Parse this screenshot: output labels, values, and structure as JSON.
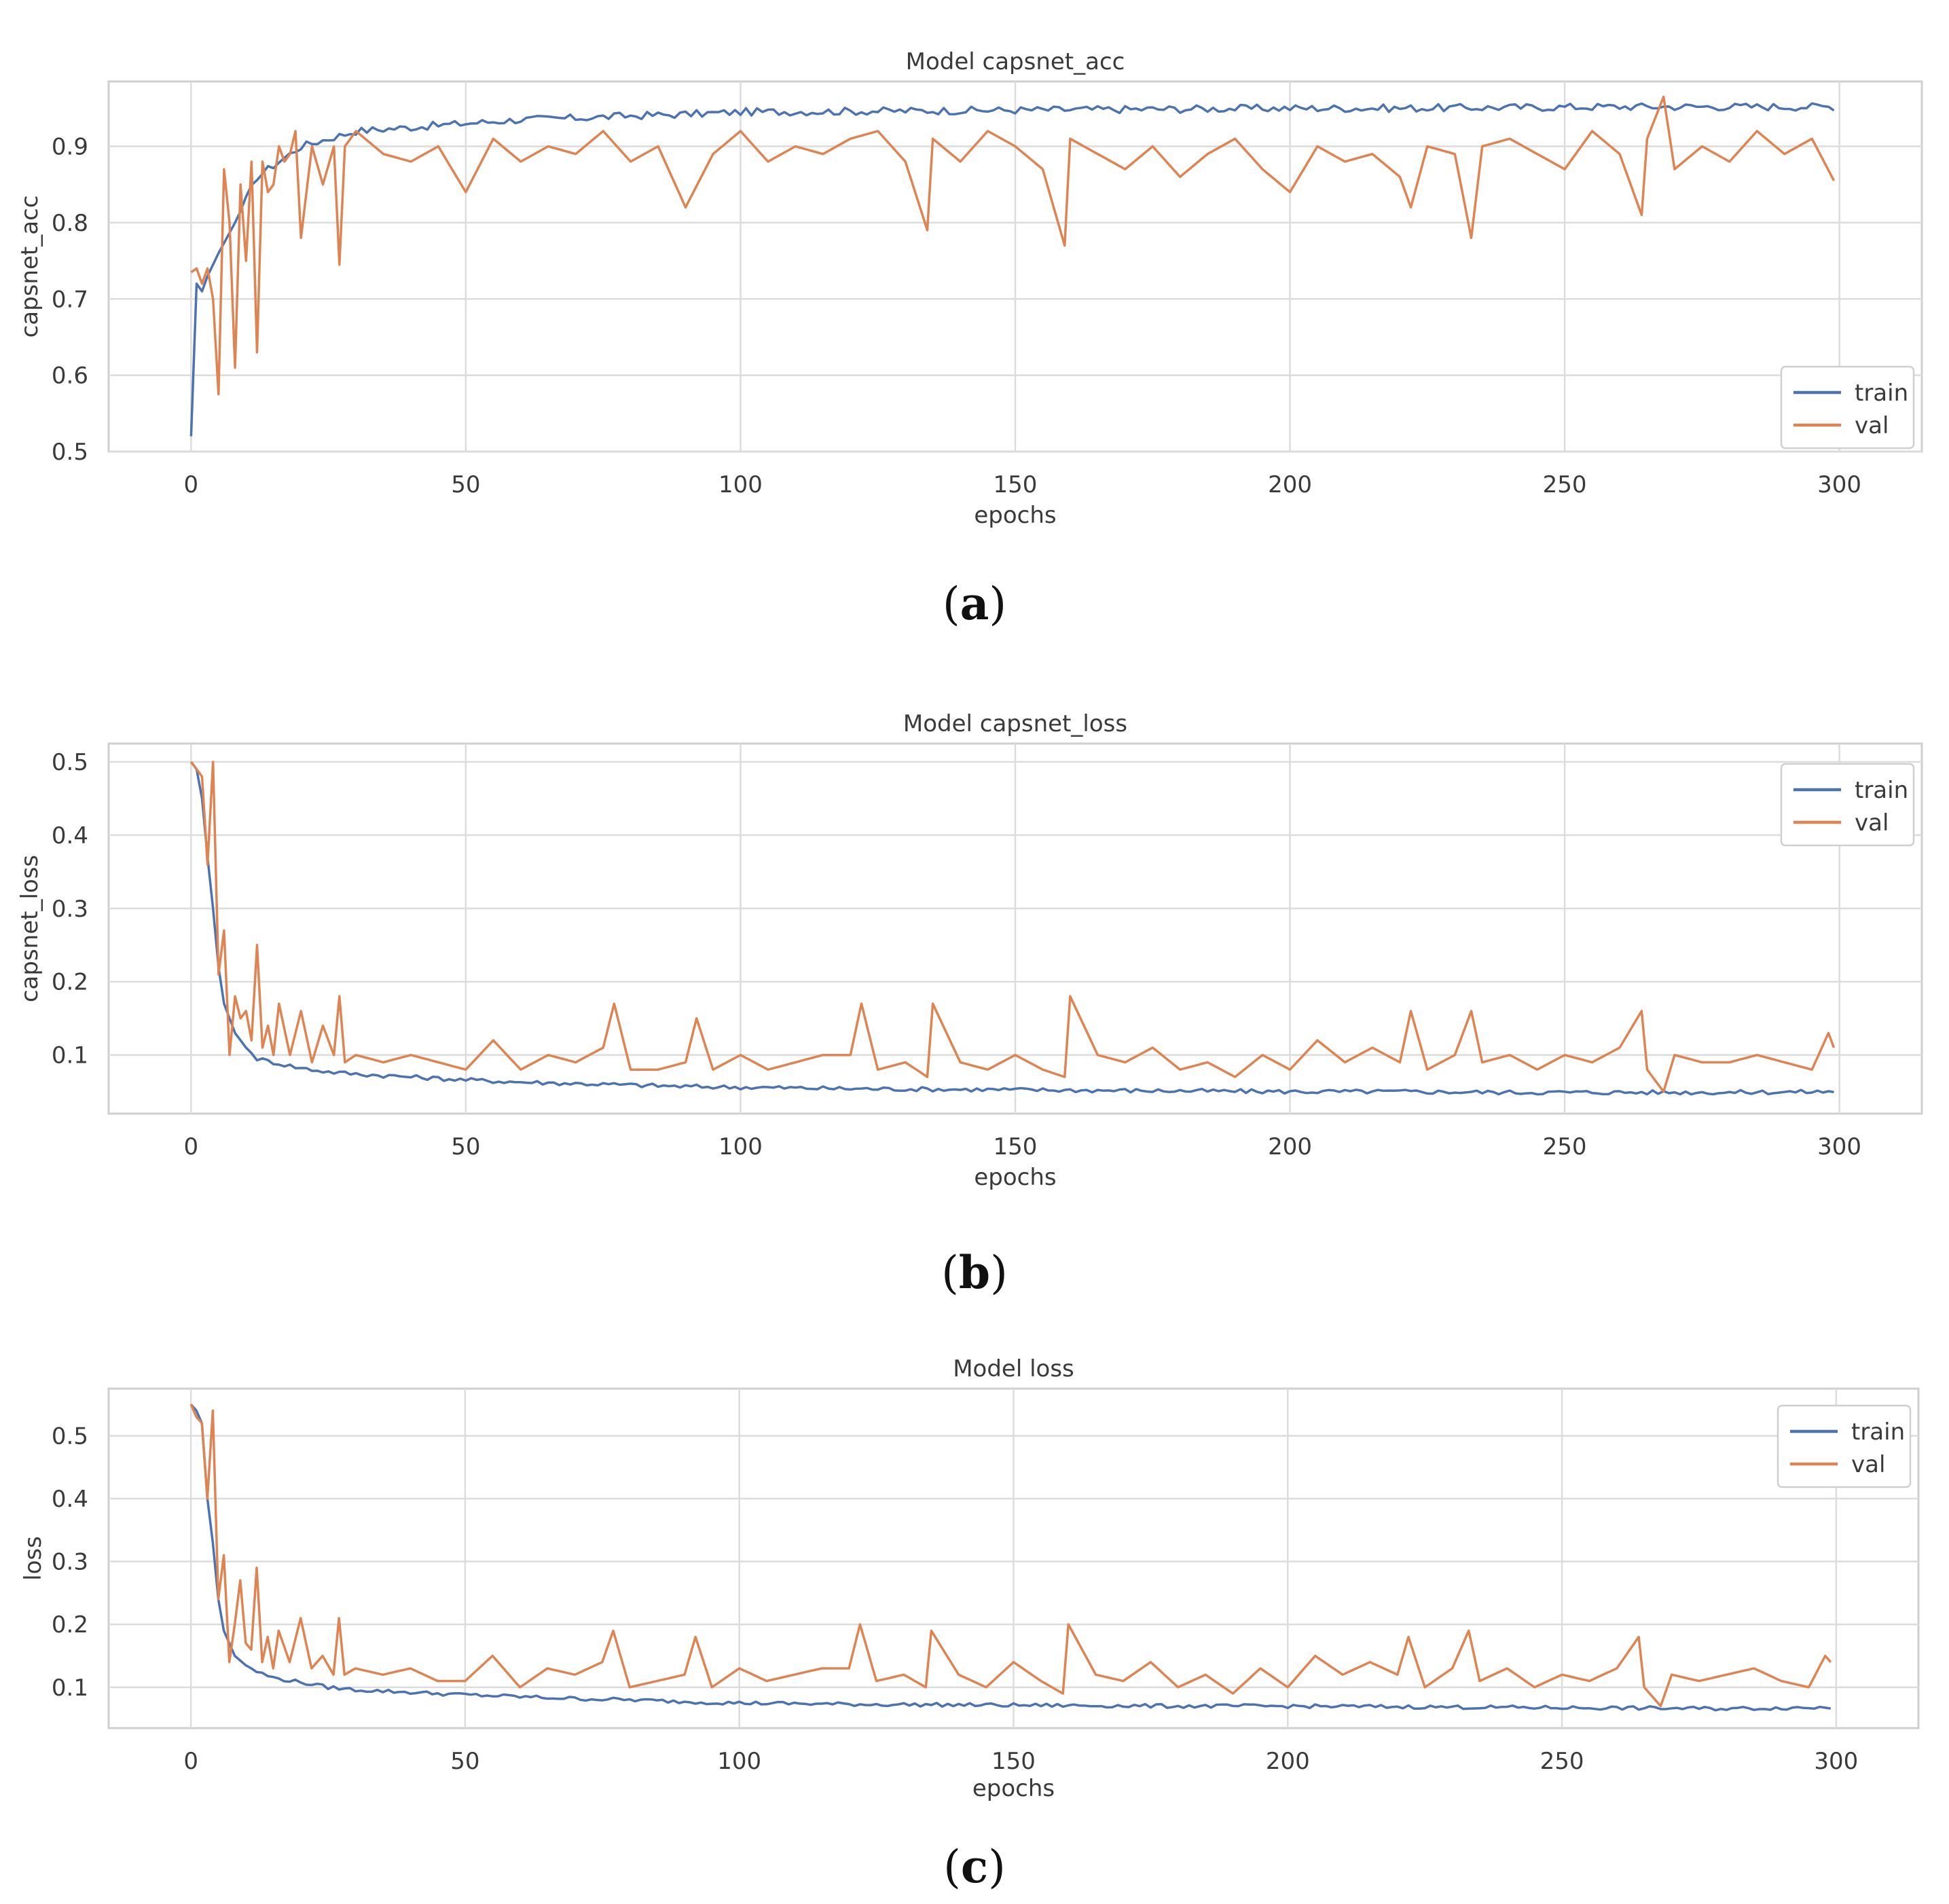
{
  "chart_data": [
    {
      "type": "line",
      "title": "Model capsnet_acc",
      "xlabel": "epochs",
      "ylabel": "capsnet_acc",
      "caption": "a",
      "xlim": [
        -15,
        315
      ],
      "ylim": [
        0.5,
        0.985
      ],
      "xticks": [
        0,
        50,
        100,
        150,
        200,
        250,
        300
      ],
      "yticks": [
        0.5,
        0.6,
        0.7,
        0.8,
        0.9
      ],
      "tick_decimals": 1,
      "legend_position": "lower-right",
      "grid": true,
      "series": [
        {
          "name": "train",
          "color": "#4c72b0",
          "x": [
            0,
            1,
            2,
            3,
            5,
            8,
            12,
            16,
            20,
            25,
            30,
            40,
            50,
            60,
            70,
            80,
            90,
            100,
            120,
            140,
            160,
            180,
            200,
            220,
            240,
            260,
            280,
            299
          ],
          "y": [
            0.52,
            0.72,
            0.71,
            0.73,
            0.76,
            0.8,
            0.86,
            0.88,
            0.9,
            0.91,
            0.92,
            0.925,
            0.93,
            0.935,
            0.937,
            0.94,
            0.942,
            0.945,
            0.946,
            0.947,
            0.948,
            0.949,
            0.95,
            0.95,
            0.951,
            0.952,
            0.952,
            0.952
          ],
          "noise_amplitude": 0.005,
          "noise_from_index": 10
        },
        {
          "name": "val",
          "color": "#dd8452",
          "x": [
            0,
            1,
            2,
            3,
            4,
            5,
            6,
            7,
            8,
            9,
            10,
            11,
            12,
            13,
            14,
            15,
            16,
            17,
            18,
            19,
            20,
            22,
            24,
            26,
            27,
            28,
            30,
            35,
            40,
            45,
            50,
            55,
            60,
            65,
            70,
            75,
            80,
            85,
            90,
            95,
            100,
            105,
            110,
            115,
            120,
            125,
            130,
            134,
            135,
            140,
            145,
            150,
            155,
            159,
            160,
            165,
            170,
            175,
            180,
            185,
            190,
            195,
            200,
            205,
            210,
            215,
            220,
            222,
            225,
            230,
            233,
            235,
            240,
            245,
            250,
            255,
            260,
            264,
            265,
            268,
            270,
            275,
            280,
            285,
            290,
            295,
            299
          ],
          "y": [
            0.735,
            0.74,
            0.72,
            0.74,
            0.7,
            0.575,
            0.87,
            0.8,
            0.61,
            0.85,
            0.75,
            0.88,
            0.63,
            0.88,
            0.84,
            0.85,
            0.9,
            0.88,
            0.89,
            0.92,
            0.78,
            0.9,
            0.85,
            0.9,
            0.745,
            0.9,
            0.92,
            0.89,
            0.88,
            0.9,
            0.84,
            0.91,
            0.88,
            0.9,
            0.89,
            0.92,
            0.88,
            0.9,
            0.82,
            0.89,
            0.92,
            0.88,
            0.9,
            0.89,
            0.91,
            0.92,
            0.88,
            0.79,
            0.91,
            0.88,
            0.92,
            0.9,
            0.87,
            0.77,
            0.91,
            0.89,
            0.87,
            0.9,
            0.86,
            0.89,
            0.91,
            0.87,
            0.84,
            0.9,
            0.88,
            0.89,
            0.86,
            0.82,
            0.9,
            0.89,
            0.78,
            0.9,
            0.91,
            0.89,
            0.87,
            0.92,
            0.89,
            0.81,
            0.91,
            0.965,
            0.87,
            0.9,
            0.88,
            0.92,
            0.89,
            0.91,
            0.855
          ],
          "noise_amplitude": 0.0,
          "noise_from_index": 0
        }
      ]
    },
    {
      "type": "line",
      "title": "Model capsnet_loss",
      "xlabel": "epochs",
      "ylabel": "capsnet_loss",
      "caption": "b",
      "xlim": [
        -15,
        315
      ],
      "ylim": [
        0.02,
        0.525
      ],
      "xticks": [
        0,
        50,
        100,
        150,
        200,
        250,
        300
      ],
      "yticks": [
        0.1,
        0.2,
        0.3,
        0.4,
        0.5
      ],
      "tick_decimals": 1,
      "legend_position": "upper-right",
      "grid": true,
      "series": [
        {
          "name": "train",
          "color": "#4c72b0",
          "x": [
            0,
            1,
            2,
            3,
            4,
            5,
            6,
            8,
            10,
            12,
            15,
            20,
            25,
            30,
            40,
            50,
            60,
            70,
            80,
            90,
            100,
            120,
            140,
            160,
            180,
            200,
            220,
            240,
            260,
            280,
            299
          ],
          "y": [
            0.5,
            0.49,
            0.45,
            0.37,
            0.3,
            0.22,
            0.17,
            0.13,
            0.11,
            0.095,
            0.09,
            0.082,
            0.077,
            0.074,
            0.07,
            0.066,
            0.063,
            0.061,
            0.059,
            0.057,
            0.056,
            0.054,
            0.053,
            0.052,
            0.051,
            0.05,
            0.05,
            0.049,
            0.049,
            0.049,
            0.05
          ],
          "noise_amplitude": 0.003,
          "noise_from_index": 12
        },
        {
          "name": "val",
          "color": "#dd8452",
          "x": [
            0,
            1,
            2,
            3,
            4,
            5,
            6,
            7,
            8,
            9,
            10,
            11,
            12,
            13,
            14,
            15,
            16,
            18,
            20,
            22,
            24,
            26,
            27,
            28,
            30,
            35,
            40,
            45,
            50,
            55,
            60,
            65,
            70,
            75,
            77,
            80,
            85,
            90,
            92,
            95,
            100,
            105,
            110,
            115,
            120,
            122,
            125,
            130,
            134,
            135,
            140,
            145,
            150,
            155,
            159,
            160,
            165,
            170,
            175,
            180,
            185,
            190,
            195,
            200,
            205,
            210,
            215,
            220,
            222,
            225,
            230,
            233,
            235,
            240,
            245,
            250,
            255,
            260,
            264,
            265,
            268,
            270,
            275,
            280,
            285,
            290,
            295,
            298,
            299
          ],
          "y": [
            0.5,
            0.49,
            0.48,
            0.36,
            0.5,
            0.21,
            0.27,
            0.1,
            0.18,
            0.15,
            0.16,
            0.12,
            0.25,
            0.11,
            0.14,
            0.1,
            0.17,
            0.1,
            0.16,
            0.09,
            0.14,
            0.1,
            0.18,
            0.09,
            0.1,
            0.09,
            0.1,
            0.09,
            0.08,
            0.12,
            0.08,
            0.1,
            0.09,
            0.11,
            0.17,
            0.08,
            0.08,
            0.09,
            0.15,
            0.08,
            0.1,
            0.08,
            0.09,
            0.1,
            0.1,
            0.17,
            0.08,
            0.09,
            0.07,
            0.17,
            0.09,
            0.08,
            0.1,
            0.08,
            0.07,
            0.18,
            0.1,
            0.09,
            0.11,
            0.08,
            0.09,
            0.07,
            0.1,
            0.08,
            0.12,
            0.09,
            0.11,
            0.09,
            0.16,
            0.08,
            0.1,
            0.16,
            0.09,
            0.1,
            0.08,
            0.1,
            0.09,
            0.11,
            0.16,
            0.08,
            0.05,
            0.1,
            0.09,
            0.09,
            0.1,
            0.09,
            0.08,
            0.13,
            0.11
          ],
          "noise_amplitude": 0.0,
          "noise_from_index": 0
        }
      ]
    },
    {
      "type": "line",
      "title": "Model loss",
      "xlabel": "epochs",
      "ylabel": "loss",
      "caption": "c",
      "xlim": [
        -15,
        315
      ],
      "ylim": [
        0.035,
        0.575
      ],
      "xticks": [
        0,
        50,
        100,
        150,
        200,
        250,
        300
      ],
      "yticks": [
        0.1,
        0.2,
        0.3,
        0.4,
        0.5
      ],
      "tick_decimals": 1,
      "legend_position": "upper-right",
      "grid": true,
      "series": [
        {
          "name": "train",
          "color": "#4c72b0",
          "x": [
            0,
            1,
            2,
            3,
            4,
            5,
            6,
            8,
            10,
            12,
            15,
            20,
            25,
            30,
            40,
            50,
            60,
            70,
            80,
            90,
            100,
            120,
            140,
            160,
            180,
            200,
            220,
            240,
            260,
            280,
            299
          ],
          "y": [
            0.55,
            0.54,
            0.52,
            0.4,
            0.33,
            0.24,
            0.19,
            0.15,
            0.135,
            0.125,
            0.115,
            0.108,
            0.1,
            0.096,
            0.092,
            0.088,
            0.085,
            0.082,
            0.08,
            0.077,
            0.075,
            0.073,
            0.072,
            0.071,
            0.07,
            0.07,
            0.069,
            0.068,
            0.067,
            0.066,
            0.068
          ],
          "noise_amplitude": 0.003,
          "noise_from_index": 12
        },
        {
          "name": "val",
          "color": "#dd8452",
          "x": [
            0,
            1,
            2,
            3,
            4,
            5,
            6,
            7,
            8,
            9,
            10,
            11,
            12,
            13,
            14,
            15,
            16,
            18,
            20,
            22,
            24,
            26,
            27,
            28,
            30,
            35,
            40,
            45,
            50,
            55,
            60,
            65,
            70,
            75,
            77,
            80,
            85,
            90,
            92,
            95,
            100,
            105,
            110,
            115,
            120,
            122,
            125,
            130,
            134,
            135,
            140,
            145,
            150,
            155,
            159,
            160,
            165,
            170,
            175,
            180,
            185,
            190,
            195,
            200,
            205,
            210,
            215,
            220,
            222,
            225,
            230,
            233,
            235,
            240,
            245,
            250,
            255,
            260,
            264,
            265,
            268,
            270,
            275,
            280,
            285,
            290,
            295,
            298,
            299
          ],
          "y": [
            0.55,
            0.53,
            0.52,
            0.4,
            0.54,
            0.24,
            0.31,
            0.14,
            0.2,
            0.27,
            0.17,
            0.16,
            0.29,
            0.14,
            0.18,
            0.13,
            0.19,
            0.14,
            0.21,
            0.13,
            0.15,
            0.12,
            0.21,
            0.12,
            0.13,
            0.12,
            0.13,
            0.11,
            0.11,
            0.15,
            0.1,
            0.13,
            0.12,
            0.14,
            0.19,
            0.1,
            0.11,
            0.12,
            0.18,
            0.1,
            0.13,
            0.11,
            0.12,
            0.13,
            0.13,
            0.2,
            0.11,
            0.12,
            0.1,
            0.19,
            0.12,
            0.1,
            0.14,
            0.11,
            0.09,
            0.2,
            0.12,
            0.11,
            0.14,
            0.1,
            0.12,
            0.09,
            0.13,
            0.1,
            0.15,
            0.12,
            0.14,
            0.12,
            0.18,
            0.1,
            0.13,
            0.19,
            0.11,
            0.13,
            0.1,
            0.12,
            0.11,
            0.13,
            0.18,
            0.1,
            0.07,
            0.12,
            0.11,
            0.12,
            0.13,
            0.11,
            0.1,
            0.15,
            0.14
          ],
          "noise_amplitude": 0.0,
          "noise_from_index": 0
        }
      ]
    }
  ]
}
